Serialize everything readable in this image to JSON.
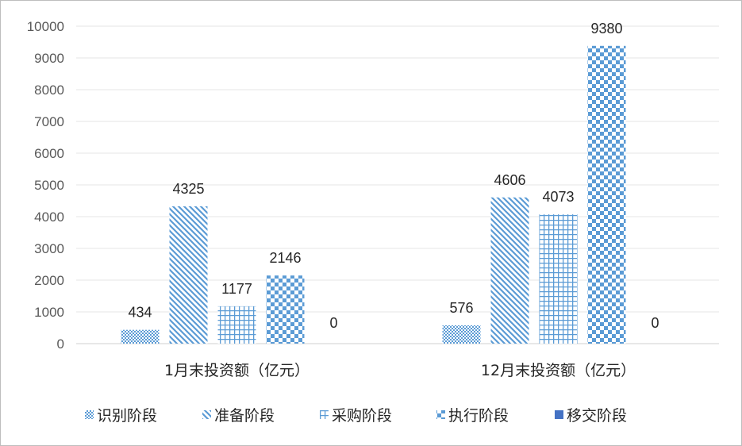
{
  "chart_data": {
    "type": "bar",
    "categories": [
      "1月末投资额（亿元）",
      "12月末投资额（亿元）"
    ],
    "series": [
      {
        "name": "识别阶段",
        "values": [
          434,
          576
        ],
        "color": "#5b9bd5",
        "pattern": "dots"
      },
      {
        "name": "准备阶段",
        "values": [
          4325,
          4606
        ],
        "color": "#5b9bd5",
        "pattern": "diagonal"
      },
      {
        "name": "采购阶段",
        "values": [
          1177,
          4073
        ],
        "color": "#5b9bd5",
        "pattern": "grid"
      },
      {
        "name": "执行阶段",
        "values": [
          2146,
          9380
        ],
        "color": "#5b9bd5",
        "pattern": "checker"
      },
      {
        "name": "移交阶段",
        "values": [
          0,
          0
        ],
        "color": "#4472c4",
        "pattern": "solid"
      }
    ],
    "yticks": [
      0,
      1000,
      2000,
      3000,
      4000,
      5000,
      6000,
      7000,
      8000,
      9000,
      10000
    ],
    "ylim": [
      0,
      10000
    ],
    "grid": true,
    "legend": "bottom",
    "data_labels": true
  }
}
